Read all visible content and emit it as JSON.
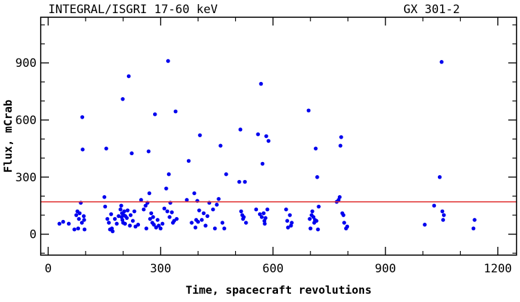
{
  "chart_data": {
    "type": "scatter",
    "title_left": "INTEGRAL/ISGRI 17-60 keV",
    "title_right": "GX 301-2",
    "xlabel": "Time, spacecraft revolutions",
    "ylabel": "Flux, mCrab",
    "xlim": [
      -20,
      1250
    ],
    "ylim": [
      -110,
      1140
    ],
    "xticks": [
      0,
      300,
      600,
      900,
      1200
    ],
    "xtick_labels": [
      "0",
      "300",
      "600",
      "900",
      "1200"
    ],
    "yticks": [
      0,
      300,
      600,
      900
    ],
    "ytick_labels": [
      "0",
      "300",
      "600",
      "900"
    ],
    "grid": false,
    "colors": {
      "points": "#0000ee",
      "reference_line": "#e03030"
    },
    "reference_line": {
      "y": 170
    },
    "series": [
      {
        "x": [
          30,
          40,
          55,
          70,
          75,
          78,
          80,
          82,
          84,
          87,
          90,
          91,
          92,
          95,
          96,
          97,
          150,
          152,
          155,
          158,
          162,
          165,
          168,
          170,
          172,
          178,
          183,
          188,
          193,
          195,
          196,
          197,
          198,
          199,
          200,
          202,
          203,
          205,
          206,
          210,
          212,
          215,
          218,
          220,
          223,
          226,
          230,
          233,
          240,
          248,
          255,
          260,
          262,
          265,
          268,
          270,
          272,
          275,
          278,
          280,
          282,
          285,
          288,
          292,
          295,
          300,
          305,
          310,
          315,
          318,
          320,
          322,
          324,
          326,
          330,
          333,
          336,
          340,
          343,
          370,
          375,
          383,
          390,
          393,
          395,
          398,
          400,
          403,
          405,
          410,
          415,
          420,
          425,
          430,
          440,
          445,
          450,
          455,
          460,
          465,
          470,
          475,
          510,
          513,
          515,
          518,
          520,
          522,
          525,
          528,
          555,
          560,
          565,
          568,
          570,
          572,
          575,
          577,
          578,
          580,
          582,
          585,
          588,
          635,
          638,
          640,
          645,
          648,
          650,
          695,
          698,
          700,
          703,
          705,
          708,
          710,
          712,
          714,
          716,
          718,
          720,
          722,
          770,
          775,
          778,
          780,
          782,
          785,
          788,
          790,
          795,
          798,
          1005,
          1030,
          1045,
          1050,
          1052,
          1054,
          1056,
          1135,
          1138
        ],
        "y": [
          55,
          65,
          55,
          25,
          100,
          120,
          30,
          80,
          110,
          165,
          60,
          615,
          445,
          95,
          75,
          25,
          195,
          145,
          450,
          80,
          60,
          25,
          105,
          30,
          15,
          80,
          55,
          95,
          130,
          150,
          90,
          110,
          75,
          710,
          60,
          100,
          120,
          55,
          95,
          85,
          125,
          830,
          45,
          100,
          425,
          70,
          120,
          40,
          50,
          180,
          130,
          150,
          30,
          165,
          435,
          215,
          80,
          110,
          60,
          90,
          50,
          630,
          35,
          75,
          45,
          30,
          55,
          135,
          240,
          120,
          910,
          315,
          90,
          165,
          115,
          60,
          70,
          645,
          80,
          180,
          385,
          60,
          215,
          35,
          75,
          175,
          65,
          125,
          520,
          75,
          110,
          45,
          95,
          165,
          130,
          30,
          155,
          185,
          465,
          60,
          30,
          315,
          275,
          550,
          120,
          100,
          80,
          90,
          275,
          60,
          130,
          525,
          105,
          790,
          90,
          370,
          110,
          70,
          55,
          85,
          515,
          130,
          490,
          130,
          70,
          35,
          100,
          45,
          60,
          650,
          80,
          30,
          100,
          120,
          90,
          60,
          75,
          450,
          70,
          300,
          25,
          145,
          170,
          180,
          195,
          465,
          510,
          110,
          100,
          60,
          30,
          40,
          50,
          150,
          300,
          905,
          120,
          75,
          100,
          30,
          75
        ]
      }
    ]
  }
}
